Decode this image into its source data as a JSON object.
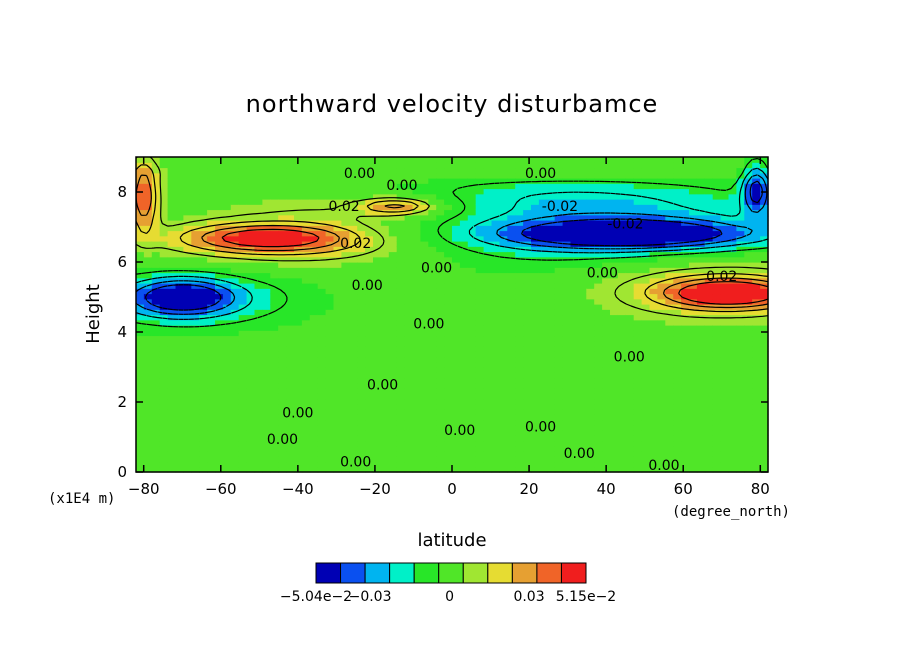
{
  "chart_data": {
    "type": "heatmap",
    "title": "northward velocity disturbamce",
    "xlabel": "latitude",
    "ylabel": "Height",
    "x_unit": "(degree_north)",
    "y_unit": "(x1E4 m)",
    "xlim": [
      -82,
      82
    ],
    "ylim": [
      0,
      9
    ],
    "xticks": [
      -80,
      -60,
      -40,
      -20,
      0,
      20,
      40,
      60,
      80
    ],
    "yticks": [
      0,
      2,
      4,
      6,
      8
    ],
    "colorbar": {
      "colors": [
        "#0000b4",
        "#0a50f0",
        "#00b4f0",
        "#00f0c8",
        "#28e628",
        "#50e628",
        "#a0e632",
        "#e6dc32",
        "#e6a032",
        "#f06428",
        "#f01e1e"
      ],
      "tick_labels": [
        "-5.04e-2",
        "-0.03",
        "0",
        "0.03",
        "5.15e-2"
      ],
      "min": -0.0504,
      "max": 0.0515
    },
    "features": [
      {
        "kind": "band",
        "lat": [
          -82,
          82
        ],
        "h": [
          0,
          9
        ],
        "value": 0.0
      },
      {
        "kind": "blob",
        "lat": -48,
        "h": 6.7,
        "wlat": 24,
        "wh": 0.45,
        "value": 0.04
      },
      {
        "kind": "blob",
        "lat": -36,
        "h": 6.55,
        "wlat": 40,
        "wh": 0.8,
        "value": 0.02
      },
      {
        "kind": "blob",
        "lat": -14,
        "h": 7.6,
        "wlat": 10,
        "wh": 0.25,
        "value": 0.03
      },
      {
        "kind": "blob",
        "lat": -20,
        "h": 7.55,
        "wlat": 40,
        "wh": 0.55,
        "value": 0.015
      },
      {
        "kind": "blob",
        "lat": -80,
        "h": 7.9,
        "wlat": 4,
        "wh": 1.1,
        "value": 0.04
      },
      {
        "kind": "blob",
        "lat": -70,
        "h": 5.0,
        "wlat": 14,
        "wh": 0.55,
        "value": -0.04
      },
      {
        "kind": "blob",
        "lat": -68,
        "h": 4.95,
        "wlat": 32,
        "wh": 0.9,
        "value": -0.02
      },
      {
        "kind": "blob",
        "lat": 46,
        "h": 6.8,
        "wlat": 34,
        "wh": 0.45,
        "value": -0.05
      },
      {
        "kind": "blob",
        "lat": 30,
        "h": 6.9,
        "wlat": 70,
        "wh": 1.2,
        "value": -0.02
      },
      {
        "kind": "blob",
        "lat": 28,
        "h": 7.8,
        "wlat": 50,
        "wh": 0.7,
        "value": -0.015
      },
      {
        "kind": "blob",
        "lat": 79,
        "h": 8.1,
        "wlat": 4,
        "wh": 0.8,
        "value": -0.04
      },
      {
        "kind": "blob",
        "lat": 72,
        "h": 5.1,
        "wlat": 18,
        "wh": 0.45,
        "value": 0.045
      },
      {
        "kind": "blob",
        "lat": 68,
        "h": 5.3,
        "wlat": 34,
        "wh": 1.0,
        "value": 0.02
      },
      {
        "kind": "blob",
        "lat": 0,
        "h": 8.6,
        "wlat": 120,
        "wh": 0.3,
        "value": 0.005
      }
    ],
    "contour_labels": [
      {
        "text": "0.00",
        "lat": -24,
        "h": 8.55
      },
      {
        "text": "0.00",
        "lat": -13,
        "h": 8.2
      },
      {
        "text": "0.02",
        "lat": -28,
        "h": 7.6
      },
      {
        "text": "0.02",
        "lat": -25,
        "h": 6.55
      },
      {
        "text": "0.00",
        "lat": -4,
        "h": 5.85
      },
      {
        "text": "0.00",
        "lat": -22,
        "h": 5.35
      },
      {
        "text": "0.00",
        "lat": -6,
        "h": 4.25
      },
      {
        "text": "0.00",
        "lat": 46,
        "h": 3.3
      },
      {
        "text": "0.00",
        "lat": -18,
        "h": 2.5
      },
      {
        "text": "0.00",
        "lat": -40,
        "h": 1.7
      },
      {
        "text": "0.00",
        "lat": -44,
        "h": 0.95
      },
      {
        "text": "0.00",
        "lat": 2,
        "h": 1.2
      },
      {
        "text": "0.00",
        "lat": 23,
        "h": 1.3
      },
      {
        "text": "0.00",
        "lat": 33,
        "h": 0.55
      },
      {
        "text": "0.00",
        "lat": -25,
        "h": 0.3
      },
      {
        "text": "0.00",
        "lat": 55,
        "h": 0.2
      },
      {
        "text": "0.00",
        "lat": 23,
        "h": 8.55
      },
      {
        "text": "-0.02",
        "lat": 28,
        "h": 7.6
      },
      {
        "text": "-0.02",
        "lat": 45,
        "h": 7.1
      },
      {
        "text": "0.00",
        "lat": 39,
        "h": 5.7
      },
      {
        "text": "0.02",
        "lat": 70,
        "h": 5.6
      }
    ]
  }
}
